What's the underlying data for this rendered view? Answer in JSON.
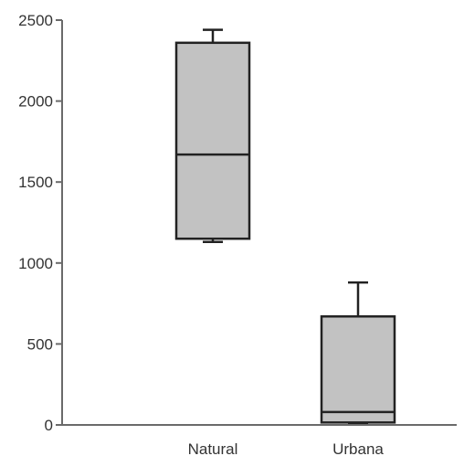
{
  "chart_data": {
    "type": "boxplot",
    "title": "",
    "xlabel": "",
    "ylabel": "",
    "ylim": [
      0,
      2500
    ],
    "yticks": [
      0,
      500,
      1000,
      1500,
      2000,
      2500
    ],
    "ytick_labels": [
      "0",
      "500",
      "1000",
      "1500",
      "2000",
      "2500"
    ],
    "grid": false,
    "legend": "none",
    "box_color": "#c2c2c2",
    "stroke_color": "#222222",
    "categories": [
      "Natural",
      "Urbana"
    ],
    "series": [
      {
        "values": [
          {
            "min": 1130,
            "q1": 1150,
            "median": 1670,
            "q3": 2360,
            "max": 2440
          },
          {
            "min": 10,
            "q1": 15,
            "median": 80,
            "q3": 670,
            "max": 880
          }
        ]
      }
    ]
  }
}
